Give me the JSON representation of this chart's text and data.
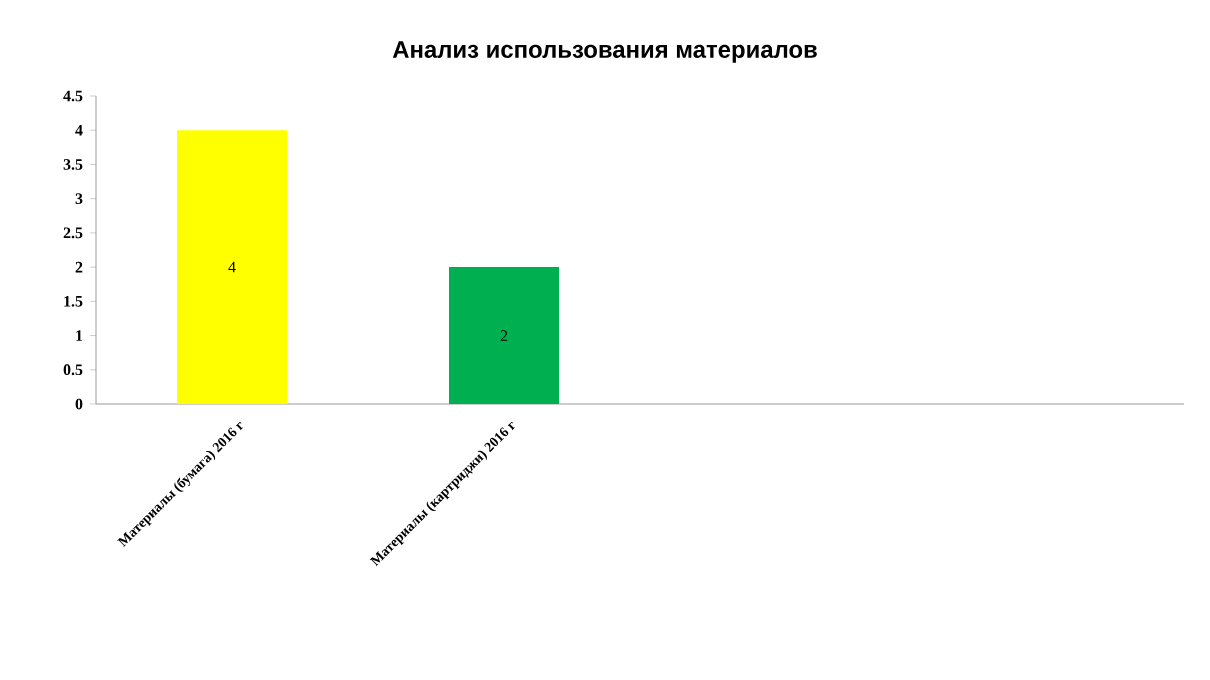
{
  "chart_data": {
    "type": "bar",
    "title": "Анализ использования материалов",
    "categories": [
      "Материалы (бумага) 2016 г",
      "Материалы (картриджи) 2016 г",
      null,
      null
    ],
    "values": [
      4,
      2,
      null,
      null
    ],
    "colors": [
      "#ffff00",
      "#00b050",
      "#ffff00",
      "#00b050"
    ],
    "ylim": [
      0,
      4.5
    ],
    "yticks": [
      0,
      0.5,
      1,
      1.5,
      2,
      2.5,
      3,
      3.5,
      4,
      4.5
    ],
    "data_labels": true
  }
}
